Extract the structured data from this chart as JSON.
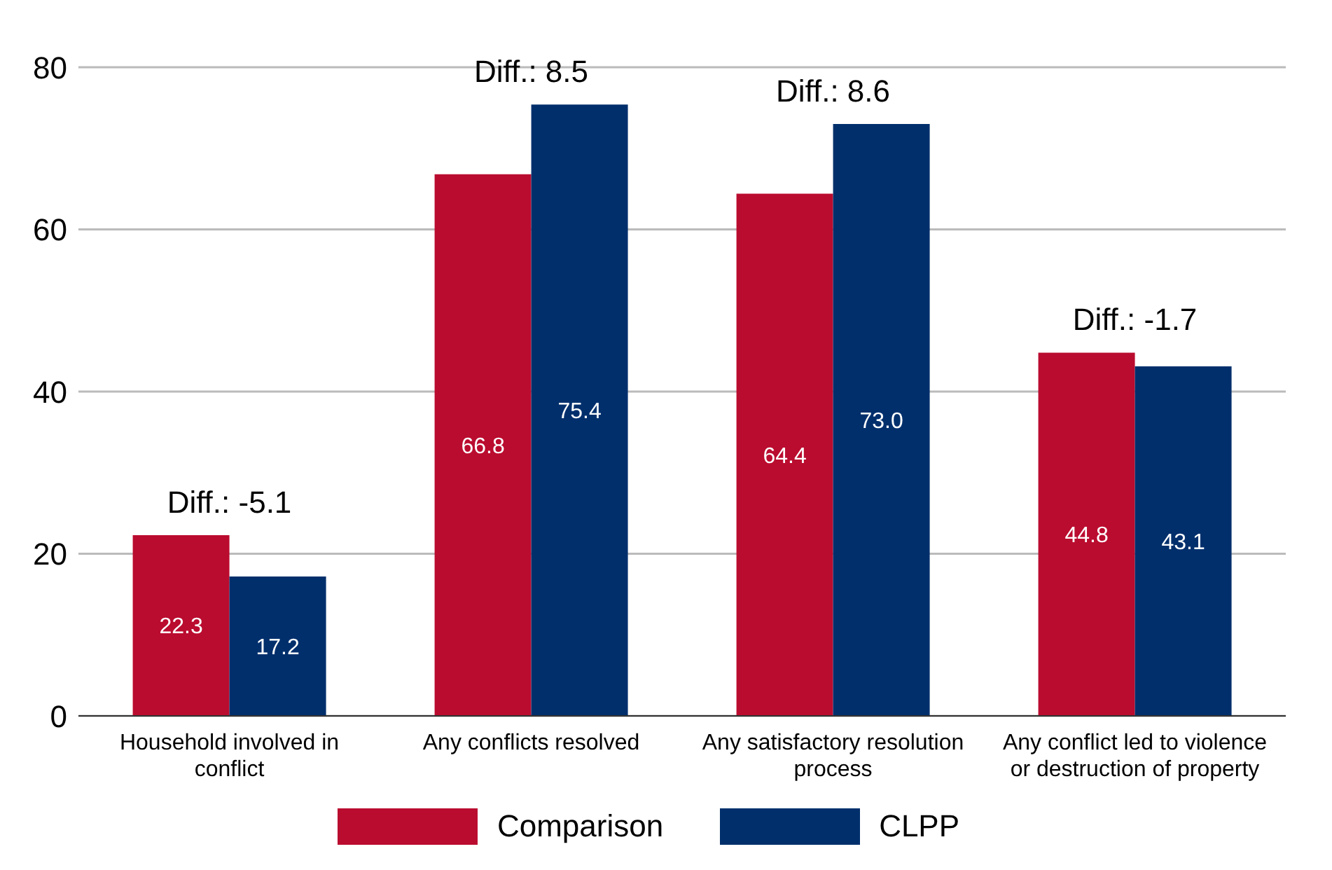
{
  "chart_data": {
    "type": "bar",
    "categories": [
      "Household involved in conflict",
      "Any conflicts resolved",
      "Any satisfactory resolution process",
      "Any conflict led to violence or destruction of property"
    ],
    "series": [
      {
        "name": "Comparison",
        "color": "#ba0c2f",
        "values": [
          22.3,
          66.8,
          64.4,
          44.8
        ],
        "value_labels": [
          "22.3",
          "66.8",
          "64.4",
          "44.8"
        ]
      },
      {
        "name": "CLPP",
        "color": "#002f6c",
        "values": [
          17.2,
          75.4,
          73.0,
          43.1
        ],
        "value_labels": [
          "17.2",
          "75.4",
          "73.0",
          "43.1"
        ]
      }
    ],
    "ylim": [
      0,
      80
    ],
    "yticks": [
      0,
      20,
      40,
      60,
      80
    ],
    "grid": "y",
    "legend": "bottom",
    "annotations": [
      {
        "text": "Diff.: -5.1",
        "x": "Household involved in conflict",
        "y": 22.3
      },
      {
        "text": "Diff.: 8.5",
        "x": "Any conflicts resolved",
        "y": 75.4
      },
      {
        "text": "Diff.: 8.6",
        "x": "Any satisfactory resolution process",
        "y": 73.0
      },
      {
        "text": "Diff.: -1.7",
        "x": "Any conflict led to violence or destruction of property",
        "y": 44.8
      }
    ]
  }
}
